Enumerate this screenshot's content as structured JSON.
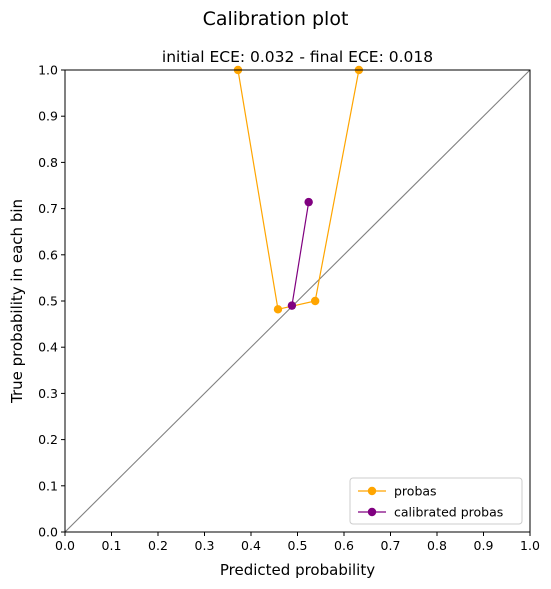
{
  "chart_data": {
    "type": "line",
    "suptitle": "Calibration plot",
    "title": "initial ECE: 0.032 - final ECE: 0.018",
    "xlabel": "Predicted probability",
    "ylabel": "True probability in each bin",
    "xlim": [
      0.0,
      1.0
    ],
    "ylim": [
      0.0,
      1.0
    ],
    "xticks": [
      "0.0",
      "0.1",
      "0.2",
      "0.3",
      "0.4",
      "0.5",
      "0.6",
      "0.7",
      "0.8",
      "0.9",
      "1.0"
    ],
    "yticks": [
      "0.0",
      "0.1",
      "0.2",
      "0.3",
      "0.4",
      "0.5",
      "0.6",
      "0.7",
      "0.8",
      "0.9",
      "1.0"
    ],
    "grid": false,
    "legend_position": "lower-right",
    "reference_line": {
      "x": [
        0.0,
        1.0
      ],
      "y": [
        0.0,
        1.0
      ],
      "color": "#808080"
    },
    "series": [
      {
        "name": "probas",
        "color": "#ffa500",
        "x": [
          0.372,
          0.458,
          0.538,
          0.632
        ],
        "y": [
          1.0,
          0.482,
          0.5,
          1.0
        ]
      },
      {
        "name": "calibrated probas",
        "color": "#800080",
        "x": [
          0.488,
          0.524
        ],
        "y": [
          0.49,
          0.714
        ]
      }
    ]
  }
}
